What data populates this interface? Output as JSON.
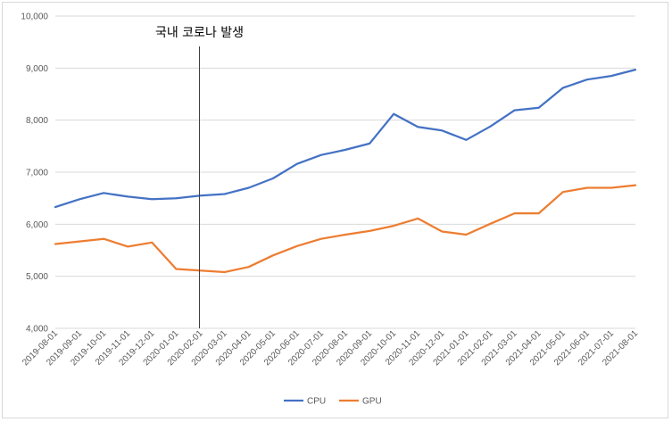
{
  "chart_data": {
    "type": "line",
    "x": [
      "2019-08-01",
      "2019-09-01",
      "2019-10-01",
      "2019-11-01",
      "2019-12-01",
      "2020-01-01",
      "2020-02-01",
      "2020-03-01",
      "2020-04-01",
      "2020-05-01",
      "2020-06-01",
      "2020-07-01",
      "2020-08-01",
      "2020-09-01",
      "2020-10-01",
      "2020-11-01",
      "2020-12-01",
      "2021-01-01",
      "2021-02-01",
      "2021-03-01",
      "2021-04-01",
      "2021-05-01",
      "2021-06-01",
      "2021-07-01",
      "2021-08-01"
    ],
    "series": [
      {
        "name": "CPU",
        "color": "#4472c4",
        "values": [
          6330,
          6480,
          6600,
          6530,
          6480,
          6500,
          6550,
          6580,
          6700,
          6880,
          7160,
          7330,
          7430,
          7550,
          8120,
          7870,
          7800,
          7620,
          7880,
          8190,
          8240,
          8620,
          8780,
          8850,
          8970
        ]
      },
      {
        "name": "GPU",
        "color": "#ed7d31",
        "values": [
          5620,
          5670,
          5720,
          5570,
          5650,
          5140,
          5110,
          5080,
          5180,
          5400,
          5580,
          5720,
          5800,
          5870,
          5970,
          6110,
          5860,
          5800,
          6010,
          6210,
          6210,
          6620,
          6700,
          6700,
          6750
        ]
      }
    ],
    "ylim": [
      4000,
      10000
    ],
    "yticks": [
      "4,000",
      "5,000",
      "6,000",
      "7,000",
      "8,000",
      "9,000",
      "10,000"
    ],
    "grid": true,
    "legend": "bottom",
    "annotation": {
      "text": "국내 코로나 발생",
      "at": "2020-02-01"
    }
  }
}
